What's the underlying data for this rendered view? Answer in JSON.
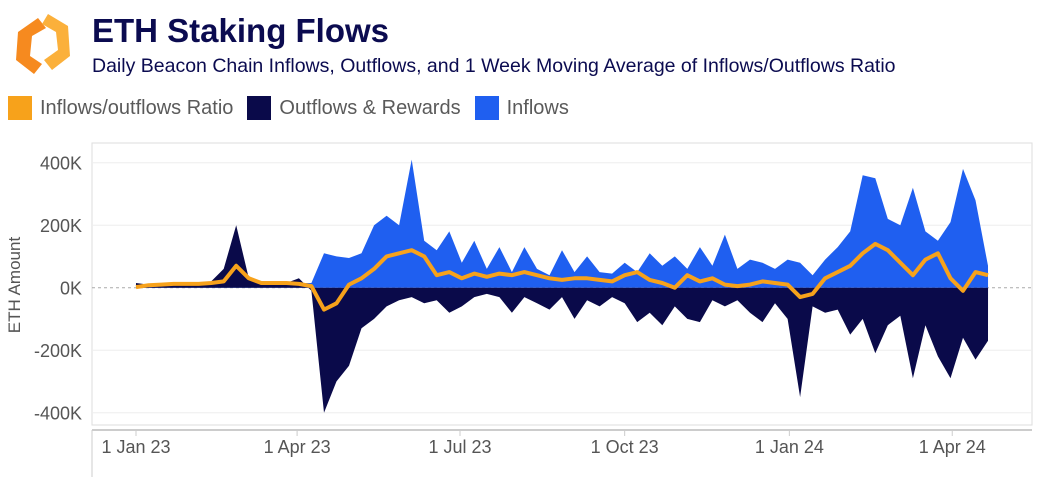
{
  "header": {
    "title": "ETH Staking Flows",
    "subtitle": "Daily Beacon Chain Inflows, Outflows, and 1 Week Moving Average of Inflows/Outflows Ratio"
  },
  "colors": {
    "ratio": "#f7a21b",
    "outflows": "#0a0a4a",
    "inflows": "#1f5ff0",
    "logo": "#f7941d"
  },
  "chart_data": {
    "type": "area",
    "title": "ETH Staking Flows",
    "ylabel": "ETH Amount",
    "xlabel": "",
    "ylim": [
      -420000,
      430000
    ],
    "yticks": [
      400000,
      200000,
      0,
      -200000,
      -400000
    ],
    "ytick_labels": [
      "400K",
      "200K",
      "0K",
      "-200K",
      "-400K"
    ],
    "xticks": [
      "2023-01-01",
      "2023-04-01",
      "2023-07-01",
      "2023-10-01",
      "2024-01-01",
      "2024-04-01"
    ],
    "xtick_labels": [
      "1 Jan 23",
      "1 Apr 23",
      "1 Jul 23",
      "1 Oct 23",
      "1 Jan 24",
      "1 Apr 24"
    ],
    "xlim": [
      "2022-12-10",
      "2024-05-15"
    ],
    "grid": true,
    "legend_position": "top-left",
    "x": [
      "2023-01-01",
      "2023-01-08",
      "2023-01-15",
      "2023-01-22",
      "2023-01-29",
      "2023-02-05",
      "2023-02-12",
      "2023-02-19",
      "2023-02-26",
      "2023-03-05",
      "2023-03-12",
      "2023-03-19",
      "2023-03-26",
      "2023-04-02",
      "2023-04-09",
      "2023-04-16",
      "2023-04-23",
      "2023-04-30",
      "2023-05-07",
      "2023-05-14",
      "2023-05-21",
      "2023-05-28",
      "2023-06-04",
      "2023-06-11",
      "2023-06-18",
      "2023-06-25",
      "2023-07-02",
      "2023-07-09",
      "2023-07-16",
      "2023-07-23",
      "2023-07-30",
      "2023-08-06",
      "2023-08-13",
      "2023-08-20",
      "2023-08-27",
      "2023-09-03",
      "2023-09-10",
      "2023-09-17",
      "2023-09-24",
      "2023-10-01",
      "2023-10-08",
      "2023-10-15",
      "2023-10-22",
      "2023-10-29",
      "2023-11-05",
      "2023-11-12",
      "2023-11-19",
      "2023-11-26",
      "2023-12-03",
      "2023-12-10",
      "2023-12-17",
      "2023-12-24",
      "2023-12-31",
      "2024-01-07",
      "2024-01-14",
      "2024-01-21",
      "2024-01-28",
      "2024-02-04",
      "2024-02-11",
      "2024-02-18",
      "2024-02-25",
      "2024-03-03",
      "2024-03-10",
      "2024-03-17",
      "2024-03-24",
      "2024-03-31",
      "2024-04-07",
      "2024-04-14",
      "2024-04-21"
    ],
    "series": [
      {
        "name": "Inflows",
        "key": "inflows",
        "values": [
          5000,
          10000,
          12000,
          12000,
          15000,
          15000,
          15000,
          18000,
          30000,
          15000,
          12000,
          12000,
          15000,
          15000,
          15000,
          110000,
          100000,
          95000,
          110000,
          200000,
          230000,
          200000,
          410000,
          150000,
          120000,
          180000,
          80000,
          150000,
          60000,
          130000,
          50000,
          130000,
          60000,
          40000,
          120000,
          50000,
          100000,
          50000,
          45000,
          80000,
          50000,
          110000,
          70000,
          100000,
          60000,
          130000,
          70000,
          170000,
          60000,
          90000,
          80000,
          60000,
          90000,
          80000,
          40000,
          90000,
          130000,
          180000,
          360000,
          350000,
          220000,
          200000,
          320000,
          180000,
          150000,
          210000,
          380000,
          280000,
          70000
        ]
      },
      {
        "name": "Outflows & Rewards",
        "key": "outflows",
        "values": [
          15000,
          10000,
          5000,
          10000,
          10000,
          10000,
          20000,
          60000,
          200000,
          30000,
          10000,
          10000,
          15000,
          30000,
          -10000,
          -400000,
          -300000,
          -250000,
          -130000,
          -100000,
          -60000,
          -40000,
          -30000,
          -50000,
          -40000,
          -80000,
          -60000,
          -30000,
          -20000,
          -30000,
          -80000,
          -30000,
          -50000,
          -70000,
          -30000,
          -100000,
          -40000,
          -60000,
          -30000,
          -50000,
          -110000,
          -80000,
          -120000,
          -60000,
          -100000,
          -110000,
          -40000,
          -60000,
          -40000,
          -80000,
          -110000,
          -50000,
          -100000,
          -350000,
          -60000,
          -80000,
          -70000,
          -150000,
          -100000,
          -210000,
          -120000,
          -90000,
          -290000,
          -120000,
          -220000,
          -290000,
          -160000,
          -230000,
          -170000
        ]
      },
      {
        "name": "Inflows/outflows Ratio",
        "key": "ratio",
        "values": [
          2000,
          8000,
          10000,
          12000,
          12000,
          12000,
          15000,
          20000,
          70000,
          30000,
          15000,
          15000,
          15000,
          12000,
          5000,
          -70000,
          -50000,
          10000,
          30000,
          60000,
          100000,
          110000,
          120000,
          100000,
          40000,
          50000,
          30000,
          45000,
          35000,
          45000,
          40000,
          50000,
          40000,
          30000,
          25000,
          30000,
          30000,
          25000,
          20000,
          40000,
          50000,
          25000,
          15000,
          0,
          40000,
          20000,
          30000,
          10000,
          5000,
          10000,
          20000,
          15000,
          10000,
          -30000,
          -20000,
          30000,
          50000,
          70000,
          110000,
          140000,
          120000,
          80000,
          40000,
          90000,
          110000,
          30000,
          -10000,
          50000,
          40000
        ]
      }
    ]
  }
}
